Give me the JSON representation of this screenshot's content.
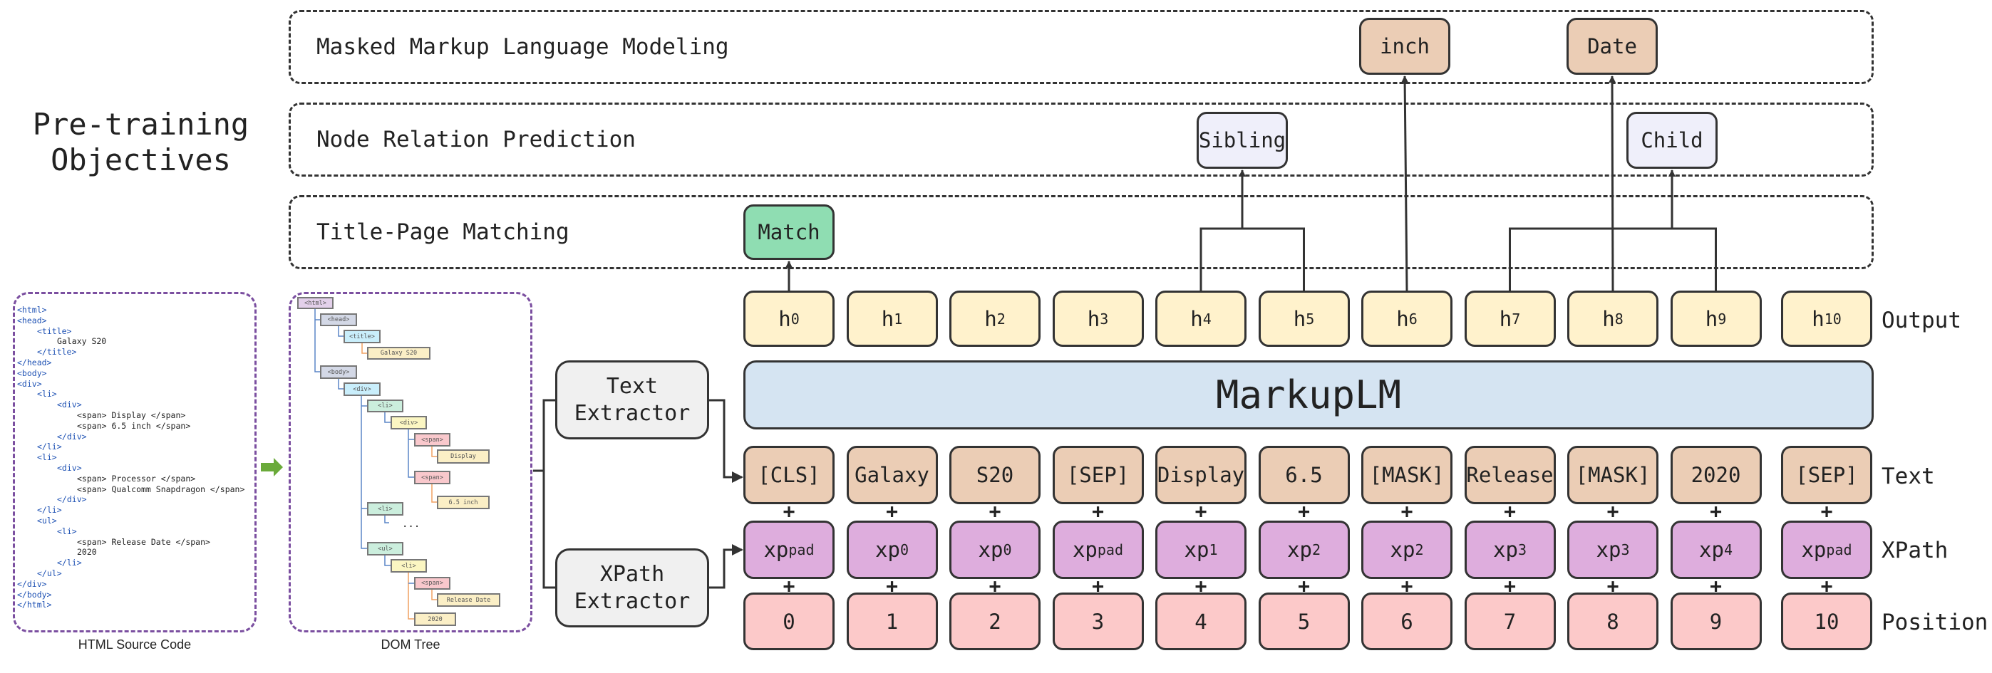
{
  "side_title": [
    "Pre-training",
    "Objectives"
  ],
  "objectives": [
    "Masked Markup Language Modeling",
    "Node Relation Prediction",
    "Title-Page Matching"
  ],
  "predictions": {
    "match": "Match",
    "sibling": "Sibling",
    "child": "Child",
    "masked": [
      "inch",
      "Date"
    ]
  },
  "model": "MarkupLM",
  "row_labels": {
    "output": "Output",
    "text": "Text",
    "xpath": "XPath",
    "position": "Position"
  },
  "outputs": [
    {
      "base": "h",
      "sub": "0"
    },
    {
      "base": "h",
      "sub": "1"
    },
    {
      "base": "h",
      "sub": "2"
    },
    {
      "base": "h",
      "sub": "3"
    },
    {
      "base": "h",
      "sub": "4"
    },
    {
      "base": "h",
      "sub": "5"
    },
    {
      "base": "h",
      "sub": "6"
    },
    {
      "base": "h",
      "sub": "7"
    },
    {
      "base": "h",
      "sub": "8"
    },
    {
      "base": "h",
      "sub": "9"
    },
    {
      "base": "h",
      "sub": "10"
    }
  ],
  "text_tokens": [
    "[CLS]",
    "Galaxy",
    "S20",
    "[SEP]",
    "Display",
    "6.5",
    "[MASK]",
    "Release",
    "[MASK]",
    "2020",
    "[SEP]"
  ],
  "xpath_tokens": [
    {
      "base": "xp",
      "sub": "pad"
    },
    {
      "base": "xp",
      "sub": "0"
    },
    {
      "base": "xp",
      "sub": "0"
    },
    {
      "base": "xp",
      "sub": "pad"
    },
    {
      "base": "xp",
      "sub": "1"
    },
    {
      "base": "xp",
      "sub": "2"
    },
    {
      "base": "xp",
      "sub": "2"
    },
    {
      "base": "xp",
      "sub": "3"
    },
    {
      "base": "xp",
      "sub": "3"
    },
    {
      "base": "xp",
      "sub": "4"
    },
    {
      "base": "xp",
      "sub": "pad"
    }
  ],
  "positions": [
    "0",
    "1",
    "2",
    "3",
    "4",
    "5",
    "6",
    "7",
    "8",
    "9",
    "10"
  ],
  "plus_sign": "+",
  "extractors": {
    "text": [
      "Text",
      "Extractor"
    ],
    "xpath": [
      "XPath",
      "Extractor"
    ]
  },
  "source_code": {
    "caption": "HTML Source Code",
    "lines": [
      {
        "indent": 0,
        "text": "<html>"
      },
      {
        "indent": 0,
        "text": "<head>"
      },
      {
        "indent": 1,
        "text": "<title>"
      },
      {
        "indent": 2,
        "text": "Galaxy S20"
      },
      {
        "indent": 1,
        "text": "</title>"
      },
      {
        "indent": 0,
        "text": "</head>"
      },
      {
        "indent": 0,
        "text": "<body>"
      },
      {
        "indent": 0,
        "text": "<div>"
      },
      {
        "indent": 1,
        "text": "<li>"
      },
      {
        "indent": 2,
        "text": "<div>"
      },
      {
        "indent": 3,
        "text": "<span> Display </span>"
      },
      {
        "indent": 3,
        "text": "<span> 6.5 inch </span>"
      },
      {
        "indent": 2,
        "text": "</div>"
      },
      {
        "indent": 1,
        "text": "</li>"
      },
      {
        "indent": 1,
        "text": "<li>"
      },
      {
        "indent": 2,
        "text": "<div>"
      },
      {
        "indent": 3,
        "text": "<span> Processor </span>"
      },
      {
        "indent": 3,
        "text": "<span> Qualcomm Snapdragon </span>"
      },
      {
        "indent": 2,
        "text": "</div>"
      },
      {
        "indent": 1,
        "text": "</li>"
      },
      {
        "indent": 1,
        "text": "<ul>"
      },
      {
        "indent": 2,
        "text": "<li>"
      },
      {
        "indent": 3,
        "text": "<span> Release Date </span>"
      },
      {
        "indent": 3,
        "text": "2020"
      },
      {
        "indent": 2,
        "text": "</li>"
      },
      {
        "indent": 1,
        "text": "</ul>"
      },
      {
        "indent": 0,
        "text": "</div>"
      },
      {
        "indent": 0,
        "text": "</body>"
      },
      {
        "indent": 0,
        "text": "</html>"
      }
    ]
  },
  "dom_tree": {
    "caption": "DOM Tree",
    "ellipsis": "...",
    "nodes": [
      {
        "label": "<html>",
        "color": "#e3d0ea"
      },
      {
        "label": "<head>",
        "color": "#d3d8e6"
      },
      {
        "label": "<title>",
        "color": "#c9eefb"
      },
      {
        "label": "Galaxy S20",
        "color": "#fbefc6"
      },
      {
        "label": "<body>",
        "color": "#d3d8e6"
      },
      {
        "label": "<div>",
        "color": "#c9eefb"
      },
      {
        "label": "<li>",
        "color": "#cbeedd"
      },
      {
        "label": "<div>",
        "color": "#fbf6c2"
      },
      {
        "label": "<span>",
        "color": "#f9c8cc"
      },
      {
        "label": "Display",
        "color": "#fbefc6"
      },
      {
        "label": "<span>",
        "color": "#f9c8cc"
      },
      {
        "label": "6.5 inch",
        "color": "#fbefc6"
      },
      {
        "label": "<li>",
        "color": "#cbeedd"
      },
      {
        "label": "<ul>",
        "color": "#cbeedd"
      },
      {
        "label": "<li>",
        "color": "#fbf6c2"
      },
      {
        "label": "<span>",
        "color": "#f9c8cc"
      },
      {
        "label": "Release Date",
        "color": "#fbefc6"
      },
      {
        "label": "2020",
        "color": "#fbefc6"
      }
    ]
  },
  "colors": {
    "output": "#fff2cc",
    "text": "#ebcdb5",
    "xpath": "#deaddd",
    "position": "#fcc9c9",
    "model": "#d5e4f2",
    "extractor": "#f0f0f0",
    "match": "#8fddb2",
    "relation": "#efeffa",
    "masked": "#ebcdb5",
    "arrow_green": "#6aaa3a"
  }
}
